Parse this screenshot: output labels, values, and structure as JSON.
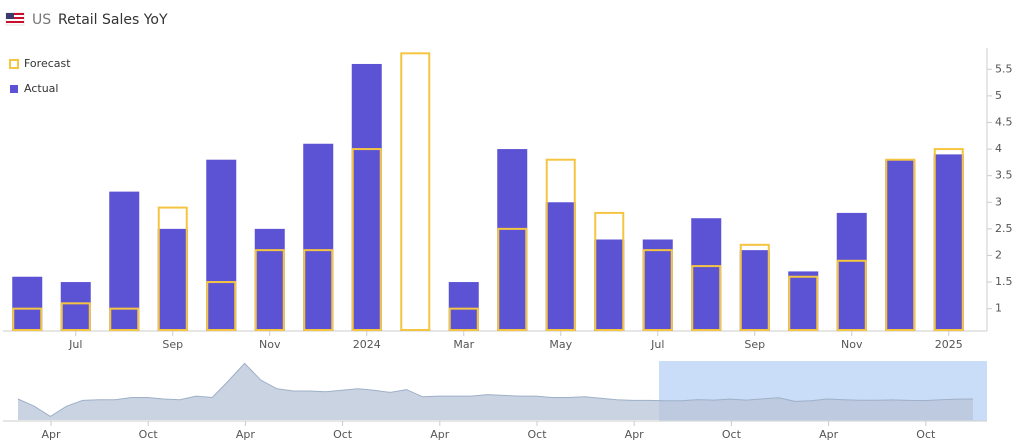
{
  "header": {
    "country": "US",
    "title": "Retail Sales YoY"
  },
  "chart_data": {
    "type": "bar",
    "categories": [
      null,
      "Jul",
      null,
      "Sep",
      null,
      "Nov",
      null,
      "2024",
      null,
      "Mar",
      null,
      "May",
      null,
      "Jul",
      null,
      "Sep",
      null,
      "Nov",
      null,
      "2025"
    ],
    "series": [
      {
        "name": "Actual",
        "color": "#5b52d4",
        "values": [
          1.6,
          1.5,
          3.2,
          2.5,
          3.8,
          2.5,
          4.1,
          5.6,
          0.6,
          1.5,
          4.0,
          3.0,
          2.3,
          2.3,
          2.7,
          2.1,
          1.7,
          2.8,
          3.8,
          3.9
        ]
      },
      {
        "name": "Forecast",
        "color": "#f5c542",
        "values": [
          1.0,
          1.1,
          1.0,
          2.9,
          1.5,
          2.1,
          2.1,
          4.0,
          5.8,
          1.0,
          2.5,
          3.8,
          2.8,
          2.1,
          1.8,
          2.2,
          1.6,
          1.9,
          3.8,
          4.0
        ]
      }
    ],
    "ylim": [
      0.58,
      5.9
    ],
    "yticks": [
      1,
      1.5,
      2,
      2.5,
      3,
      3.5,
      4,
      4.5,
      5,
      5.5
    ],
    "legend": "top-left"
  },
  "navigator": {
    "type": "area",
    "color": "#b8c4d8",
    "values": [
      4,
      -6,
      -20,
      -6,
      2,
      3,
      3,
      6,
      6,
      4,
      3,
      8,
      6,
      29,
      53,
      30,
      18,
      15,
      15,
      14,
      16,
      18,
      16,
      13,
      17,
      7,
      8,
      8,
      8,
      10,
      9,
      8,
      8,
      6,
      6,
      7,
      5,
      3,
      2,
      2,
      1.6,
      1.5,
      3.2,
      2.5,
      3.8,
      2.5,
      4.1,
      5.6,
      0.6,
      1.5,
      4.0,
      3.0,
      2.3,
      2.3,
      2.7,
      2.1,
      1.7,
      2.8,
      3.8,
      3.9
    ],
    "ylim": [
      -25,
      55
    ],
    "labels": [
      "Apr",
      "Oct",
      "Apr",
      "Oct",
      "Apr",
      "Oct",
      "Apr",
      "Oct",
      "Apr",
      "Oct"
    ]
  }
}
